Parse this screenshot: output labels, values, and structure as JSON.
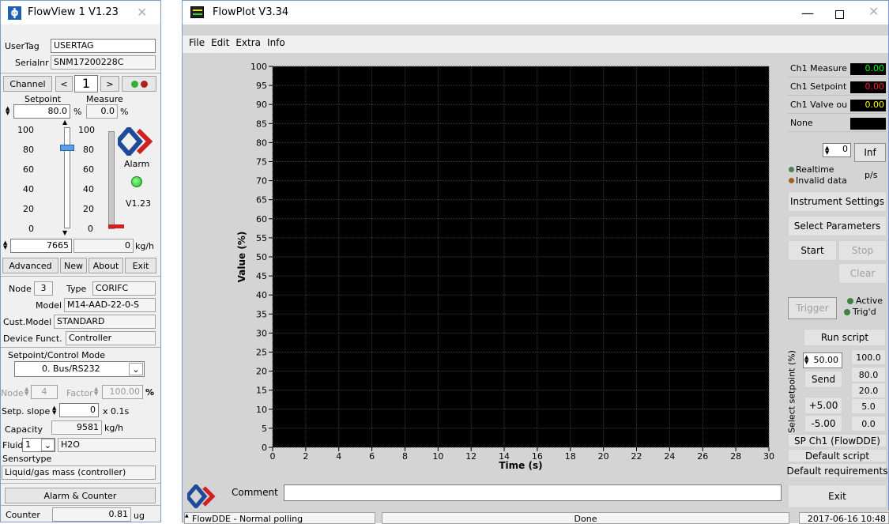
{
  "flowview": {
    "title": "FlowView 1 V1.23",
    "usertag_label": "UserTag",
    "usertag_value": "USERTAG",
    "serial_label": "Serialnr",
    "serial_value": "SNM17200228C",
    "channel_label": "Channel",
    "prev": "<",
    "channel_value": "1",
    "next": ">",
    "setpoint_label": "Setpoint",
    "measure_label": "Measure",
    "setpoint_value": "80.0",
    "setpoint_unit": "%",
    "measure_value": "0.0",
    "measure_unit": "%",
    "scale_ticks": [
      "100",
      "80",
      "60",
      "40",
      "20",
      "0"
    ],
    "alarm_label": "Alarm",
    "version_label": "V1.23",
    "setpoint_level": 0.8,
    "measure_level": 0.0,
    "setpoint_raw": "7665",
    "measure_flow": "0",
    "flow_unit": "kg/h",
    "buttons": [
      "Advanced",
      "New",
      "About",
      "Exit"
    ],
    "node_label": "Node",
    "node_value": "3",
    "type_label": "Type",
    "type_value": "CORIFC",
    "model_label": "Model",
    "model_value": "M14-AAD-22-0-S",
    "custmodel_label": "Cust.Model",
    "custmodel_value": "STANDARD",
    "devfunc_label": "Device Funct.",
    "devfunc_value": "Controller",
    "mode_label": "Setpoint/Control Mode",
    "mode_value": "0. Bus/RS232",
    "node2_label": "Node",
    "node2_value": "4",
    "factor_label": "Factor",
    "factor_value": "100.00",
    "factor_unit": "%",
    "slope_label": "Setp. slope",
    "slope_value": "0",
    "slope_unit": "x 0.1s",
    "capacity_label": "Capacity",
    "capacity_value": "9581",
    "capacity_unit": "kg/h",
    "fluid_label": "Fluid",
    "fluid_value": "1",
    "fluid_name": "H2O",
    "sensortype_label": "Sensortype",
    "sensortype_value": "Liquid/gas mass (controller)",
    "alarm_counter_button": "Alarm & Counter",
    "counter_label": "Counter",
    "counter_value": "0.81",
    "counter_unit": "ug"
  },
  "flowplot": {
    "title": "FlowPlot V3.34",
    "menu": [
      "File",
      "Edit",
      "Extra",
      "Info"
    ],
    "channels": [
      {
        "label": "Ch1 Measure",
        "value": "0.00",
        "color": "#00ff00"
      },
      {
        "label": "Ch1 Setpoint",
        "value": "0.00",
        "color": "#ff2020"
      },
      {
        "label": "Ch1 Valve ou",
        "value": "0.00",
        "color": "#ffff00"
      },
      {
        "label": "None",
        "value": "",
        "color": "#000000"
      }
    ],
    "rate_value": "0",
    "inf_button": "Inf",
    "rate_unit": "p/s",
    "realtime_label": "Realtime",
    "invalid_label": "Invalid data",
    "instrument_settings": "Instrument Settings",
    "select_parameters": "Select Parameters",
    "start": "Start",
    "stop": "Stop",
    "clear": "Clear",
    "trigger": "Trigger",
    "active": "Active",
    "trigd": "Trig'd",
    "run_script": "Run script",
    "select_setpoint_label": "Select setpoint (%)",
    "setpoint_input": "50.00",
    "send": "Send",
    "presets": [
      "100.0",
      "80.0",
      "20.0",
      "5.0",
      "0.0"
    ],
    "plus": "+5.00",
    "minus": "-5.00",
    "sp_channel": "SP Ch1 (FlowDDE)",
    "default_script": "Default script",
    "default_requirements": "Default requirements",
    "comment_label": "Comment",
    "exit": "Exit",
    "status_left": "FlowDDE - Normal polling",
    "status_mid": "Done",
    "status_right": "2017-06-16  10:48"
  },
  "chart_data": {
    "type": "line",
    "xlabel": "Time (s)",
    "ylabel": "Value (%)",
    "xlim": [
      0,
      30
    ],
    "ylim": [
      0,
      100
    ],
    "xticks": [
      0,
      2,
      4,
      6,
      8,
      10,
      12,
      14,
      16,
      18,
      20,
      22,
      24,
      26,
      28,
      30
    ],
    "yticks": [
      0,
      5,
      10,
      15,
      20,
      25,
      30,
      35,
      40,
      45,
      50,
      55,
      60,
      65,
      70,
      75,
      80,
      85,
      90,
      95,
      100
    ],
    "grid": true,
    "background": "#000000",
    "gridcolor": "#3c3c3c",
    "series": []
  }
}
